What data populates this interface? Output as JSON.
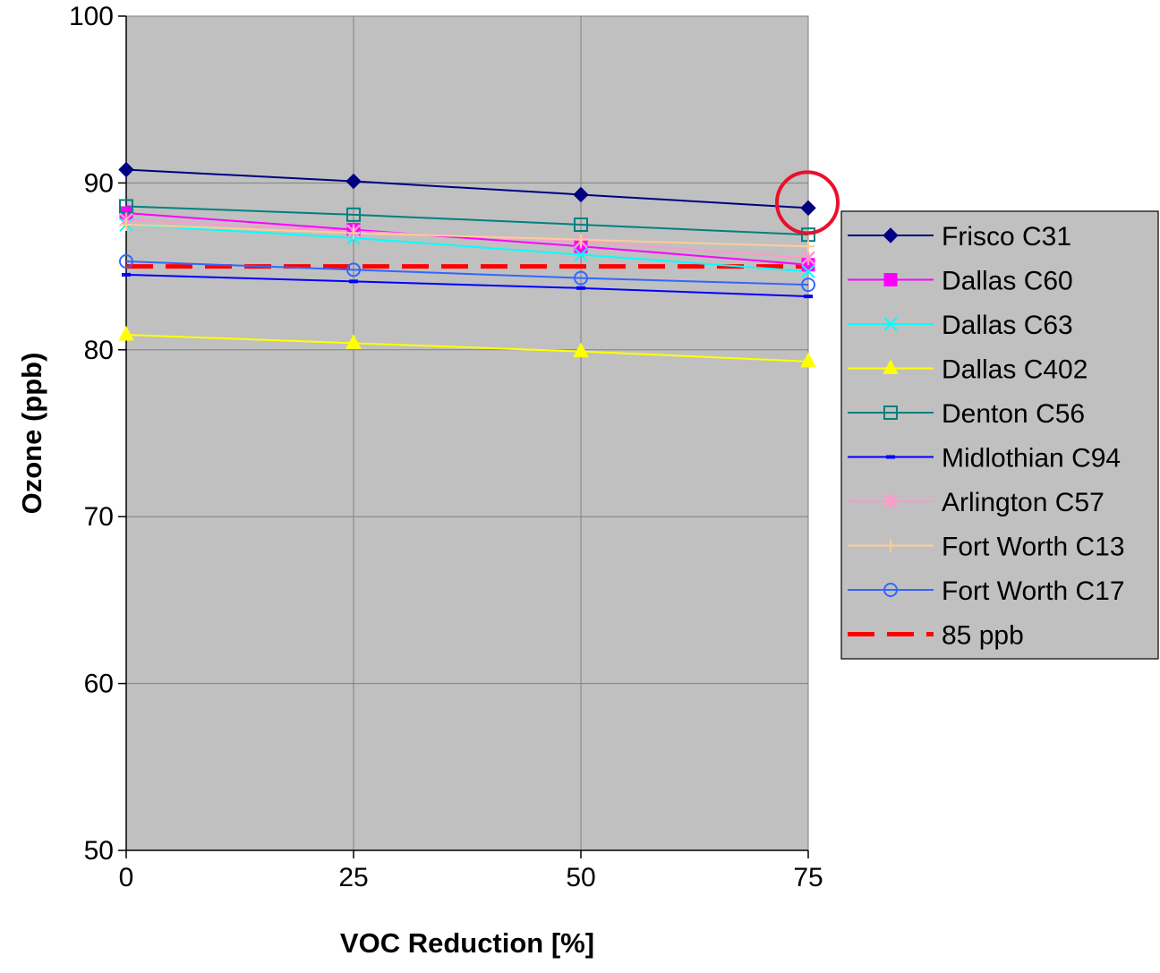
{
  "chart_data": {
    "type": "line",
    "title": "",
    "xlabel": "VOC Reduction [%]",
    "ylabel": "Ozone (ppb)",
    "x": [
      0,
      25,
      50,
      75
    ],
    "xlim": [
      0,
      75
    ],
    "ylim": [
      50,
      100
    ],
    "yticks": [
      50,
      60,
      70,
      80,
      90,
      100
    ],
    "grid": true,
    "plot_background": "#c0c0c0",
    "legend_position": "right",
    "series": [
      {
        "name": "Frisco C31",
        "values": [
          90.8,
          90.1,
          89.3,
          88.5
        ],
        "color": "#000080",
        "marker": "diamond"
      },
      {
        "name": "Dallas C60",
        "values": [
          88.2,
          87.2,
          86.2,
          85.1
        ],
        "color": "#ff00ff",
        "marker": "square"
      },
      {
        "name": "Dallas C63",
        "values": [
          87.5,
          86.7,
          85.7,
          84.7
        ],
        "color": "#00ffff",
        "marker": "x"
      },
      {
        "name": "Dallas C402",
        "values": [
          80.9,
          80.4,
          79.9,
          79.3
        ],
        "color": "#ffff00",
        "marker": "triangle"
      },
      {
        "name": "Denton C56",
        "values": [
          88.6,
          88.1,
          87.5,
          86.9
        ],
        "color": "#008080",
        "marker": "open-square"
      },
      {
        "name": "Midlothian C94",
        "values": [
          84.5,
          84.1,
          83.7,
          83.2
        ],
        "color": "#0000ff",
        "marker": "dash"
      },
      {
        "name": "Arlington C57",
        "values": [
          87.8,
          87.1,
          86.5,
          85.5
        ],
        "color": "#ff99cc",
        "marker": "star"
      },
      {
        "name": "Fort Worth C13",
        "values": [
          87.5,
          87.0,
          86.6,
          86.2
        ],
        "color": "#ffcc99",
        "marker": "plus"
      },
      {
        "name": "Fort Worth C17",
        "values": [
          85.3,
          84.8,
          84.3,
          83.9
        ],
        "color": "#3366ff",
        "marker": "circle"
      },
      {
        "name": "85 ppb",
        "values": [
          85,
          85,
          85,
          85
        ],
        "color": "#ff0000",
        "marker": "none",
        "dashed": true
      }
    ],
    "annotations": [
      {
        "type": "circle",
        "x": 75,
        "y": 88.5,
        "color": "#e8102c"
      }
    ]
  }
}
